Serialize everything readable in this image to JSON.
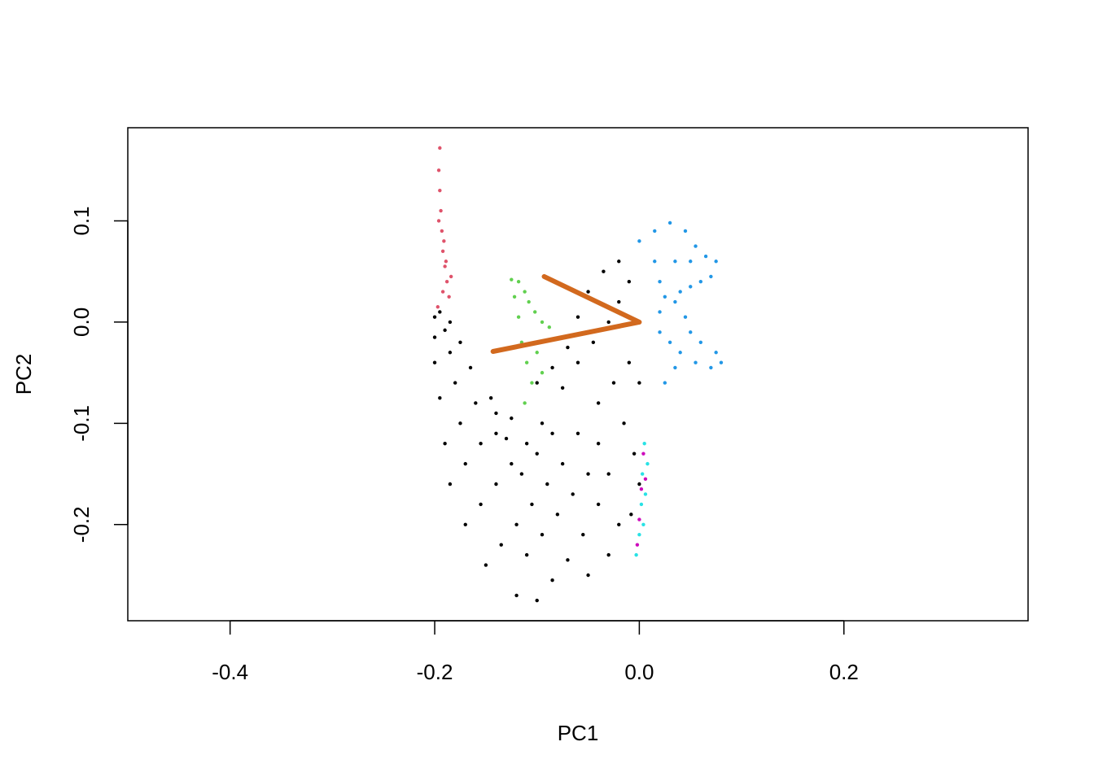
{
  "chart_data": {
    "type": "scatter",
    "title": "",
    "xlabel": "PC1",
    "ylabel": "PC2",
    "xlim": [
      -0.5,
      0.38
    ],
    "ylim": [
      -0.295,
      0.192
    ],
    "x_ticks": [
      -0.4,
      -0.2,
      0.0,
      0.2
    ],
    "x_tick_labels": [
      "-0.4",
      "-0.2",
      "0.0",
      "0.2"
    ],
    "y_ticks": [
      -0.2,
      -0.1,
      0.0,
      0.1
    ],
    "y_tick_labels": [
      "-0.2",
      "-0.1",
      "0.0",
      "0.1"
    ],
    "grid": false,
    "legend": "none",
    "series": [
      {
        "color": "#000000",
        "marker": "dot",
        "values": [
          [
            -0.2,
            0.005
          ],
          [
            -0.195,
            0.01
          ],
          [
            -0.2,
            -0.015
          ],
          [
            -0.19,
            -0.008
          ],
          [
            -0.185,
            0.0
          ],
          [
            -0.2,
            -0.04
          ],
          [
            -0.185,
            -0.03
          ],
          [
            -0.175,
            -0.02
          ],
          [
            -0.195,
            -0.075
          ],
          [
            -0.18,
            -0.06
          ],
          [
            -0.165,
            -0.045
          ],
          [
            -0.19,
            -0.12
          ],
          [
            -0.175,
            -0.1
          ],
          [
            -0.16,
            -0.08
          ],
          [
            -0.145,
            -0.075
          ],
          [
            -0.185,
            -0.16
          ],
          [
            -0.17,
            -0.14
          ],
          [
            -0.155,
            -0.12
          ],
          [
            -0.14,
            -0.11
          ],
          [
            -0.125,
            -0.095
          ],
          [
            -0.17,
            -0.2
          ],
          [
            -0.155,
            -0.18
          ],
          [
            -0.14,
            -0.16
          ],
          [
            -0.125,
            -0.14
          ],
          [
            -0.11,
            -0.12
          ],
          [
            -0.095,
            -0.1
          ],
          [
            -0.15,
            -0.24
          ],
          [
            -0.135,
            -0.22
          ],
          [
            -0.12,
            -0.2
          ],
          [
            -0.105,
            -0.18
          ],
          [
            -0.09,
            -0.16
          ],
          [
            -0.075,
            -0.14
          ],
          [
            -0.06,
            -0.11
          ],
          [
            -0.12,
            -0.27
          ],
          [
            -0.1,
            -0.275
          ],
          [
            -0.085,
            -0.255
          ],
          [
            -0.07,
            -0.235
          ],
          [
            -0.055,
            -0.21
          ],
          [
            -0.04,
            -0.18
          ],
          [
            -0.03,
            -0.15
          ],
          [
            -0.075,
            -0.065
          ],
          [
            -0.06,
            -0.04
          ],
          [
            -0.045,
            -0.02
          ],
          [
            -0.03,
            0.0
          ],
          [
            -0.02,
            0.02
          ],
          [
            -0.01,
            0.04
          ],
          [
            -0.04,
            -0.08
          ],
          [
            -0.025,
            -0.06
          ],
          [
            -0.01,
            -0.04
          ],
          [
            0.0,
            -0.06
          ],
          [
            -0.015,
            -0.1
          ],
          [
            -0.005,
            -0.13
          ],
          [
            0.0,
            -0.16
          ],
          [
            -0.008,
            -0.19
          ],
          [
            -0.06,
            0.005
          ],
          [
            -0.05,
            0.03
          ],
          [
            -0.035,
            0.05
          ],
          [
            -0.02,
            0.06
          ],
          [
            -0.05,
            -0.25
          ],
          [
            -0.03,
            -0.23
          ],
          [
            -0.02,
            -0.2
          ],
          [
            -0.11,
            -0.23
          ],
          [
            -0.095,
            -0.21
          ],
          [
            -0.08,
            -0.19
          ],
          [
            -0.065,
            -0.17
          ],
          [
            -0.05,
            -0.15
          ],
          [
            -0.04,
            -0.12
          ],
          [
            -0.1,
            -0.06
          ],
          [
            -0.085,
            -0.045
          ],
          [
            -0.07,
            -0.025
          ],
          [
            -0.14,
            -0.09
          ],
          [
            -0.13,
            -0.115
          ],
          [
            -0.115,
            -0.15
          ],
          [
            -0.1,
            -0.13
          ],
          [
            -0.085,
            -0.11
          ]
        ]
      },
      {
        "color": "#DF536B",
        "marker": "dot",
        "values": [
          [
            -0.195,
            0.172
          ],
          [
            -0.196,
            0.15
          ],
          [
            -0.195,
            0.13
          ],
          [
            -0.194,
            0.11
          ],
          [
            -0.193,
            0.09
          ],
          [
            -0.192,
            0.07
          ],
          [
            -0.19,
            0.055
          ],
          [
            -0.188,
            0.04
          ],
          [
            -0.192,
            0.03
          ],
          [
            -0.186,
            0.025
          ],
          [
            -0.197,
            0.015
          ],
          [
            -0.184,
            0.045
          ],
          [
            -0.196,
            0.1
          ],
          [
            -0.191,
            0.08
          ],
          [
            -0.189,
            0.06
          ]
        ]
      },
      {
        "color": "#61D04F",
        "marker": "dot",
        "values": [
          [
            -0.125,
            0.042
          ],
          [
            -0.118,
            0.04
          ],
          [
            -0.112,
            0.03
          ],
          [
            -0.122,
            0.025
          ],
          [
            -0.108,
            0.02
          ],
          [
            -0.102,
            0.01
          ],
          [
            -0.118,
            0.005
          ],
          [
            -0.095,
            0.0
          ],
          [
            -0.088,
            -0.005
          ],
          [
            -0.115,
            -0.02
          ],
          [
            -0.11,
            -0.04
          ],
          [
            -0.105,
            -0.06
          ],
          [
            -0.112,
            -0.08
          ],
          [
            -0.1,
            -0.03
          ],
          [
            -0.095,
            -0.05
          ]
        ]
      },
      {
        "color": "#2297E6",
        "marker": "dot",
        "values": [
          [
            0.0,
            0.08
          ],
          [
            0.015,
            0.09
          ],
          [
            0.03,
            0.098
          ],
          [
            0.045,
            0.09
          ],
          [
            0.055,
            0.075
          ],
          [
            0.065,
            0.065
          ],
          [
            0.075,
            0.06
          ],
          [
            0.07,
            0.045
          ],
          [
            0.06,
            0.04
          ],
          [
            0.05,
            0.035
          ],
          [
            0.04,
            0.03
          ],
          [
            0.025,
            0.025
          ],
          [
            0.02,
            0.04
          ],
          [
            0.015,
            0.06
          ],
          [
            0.035,
            0.02
          ],
          [
            0.045,
            0.005
          ],
          [
            0.05,
            -0.01
          ],
          [
            0.06,
            -0.02
          ],
          [
            0.075,
            -0.03
          ],
          [
            0.08,
            -0.04
          ],
          [
            0.07,
            -0.045
          ],
          [
            0.055,
            -0.04
          ],
          [
            0.04,
            -0.03
          ],
          [
            0.03,
            -0.02
          ],
          [
            0.02,
            -0.01
          ],
          [
            0.02,
            0.01
          ],
          [
            0.035,
            0.06
          ],
          [
            0.05,
            0.06
          ],
          [
            0.035,
            -0.045
          ],
          [
            0.025,
            -0.06
          ]
        ]
      },
      {
        "color": "#28E2E5",
        "marker": "dot",
        "values": [
          [
            0.005,
            -0.12
          ],
          [
            0.003,
            -0.15
          ],
          [
            0.002,
            -0.18
          ],
          [
            0.0,
            -0.21
          ],
          [
            -0.003,
            -0.23
          ],
          [
            0.008,
            -0.14
          ],
          [
            0.006,
            -0.17
          ],
          [
            0.004,
            -0.2
          ]
        ]
      },
      {
        "color": "#CD0BBC",
        "marker": "dot",
        "values": [
          [
            0.004,
            -0.13
          ],
          [
            0.002,
            -0.165
          ],
          [
            0.0,
            -0.195
          ],
          [
            0.006,
            -0.155
          ],
          [
            -0.002,
            -0.22
          ]
        ]
      },
      {
        "color": "#D2691E",
        "marker": "line",
        "values": [
          [
            -0.093,
            0.045
          ],
          [
            0.0,
            0.0
          ],
          [
            -0.143,
            -0.029
          ]
        ]
      }
    ]
  }
}
